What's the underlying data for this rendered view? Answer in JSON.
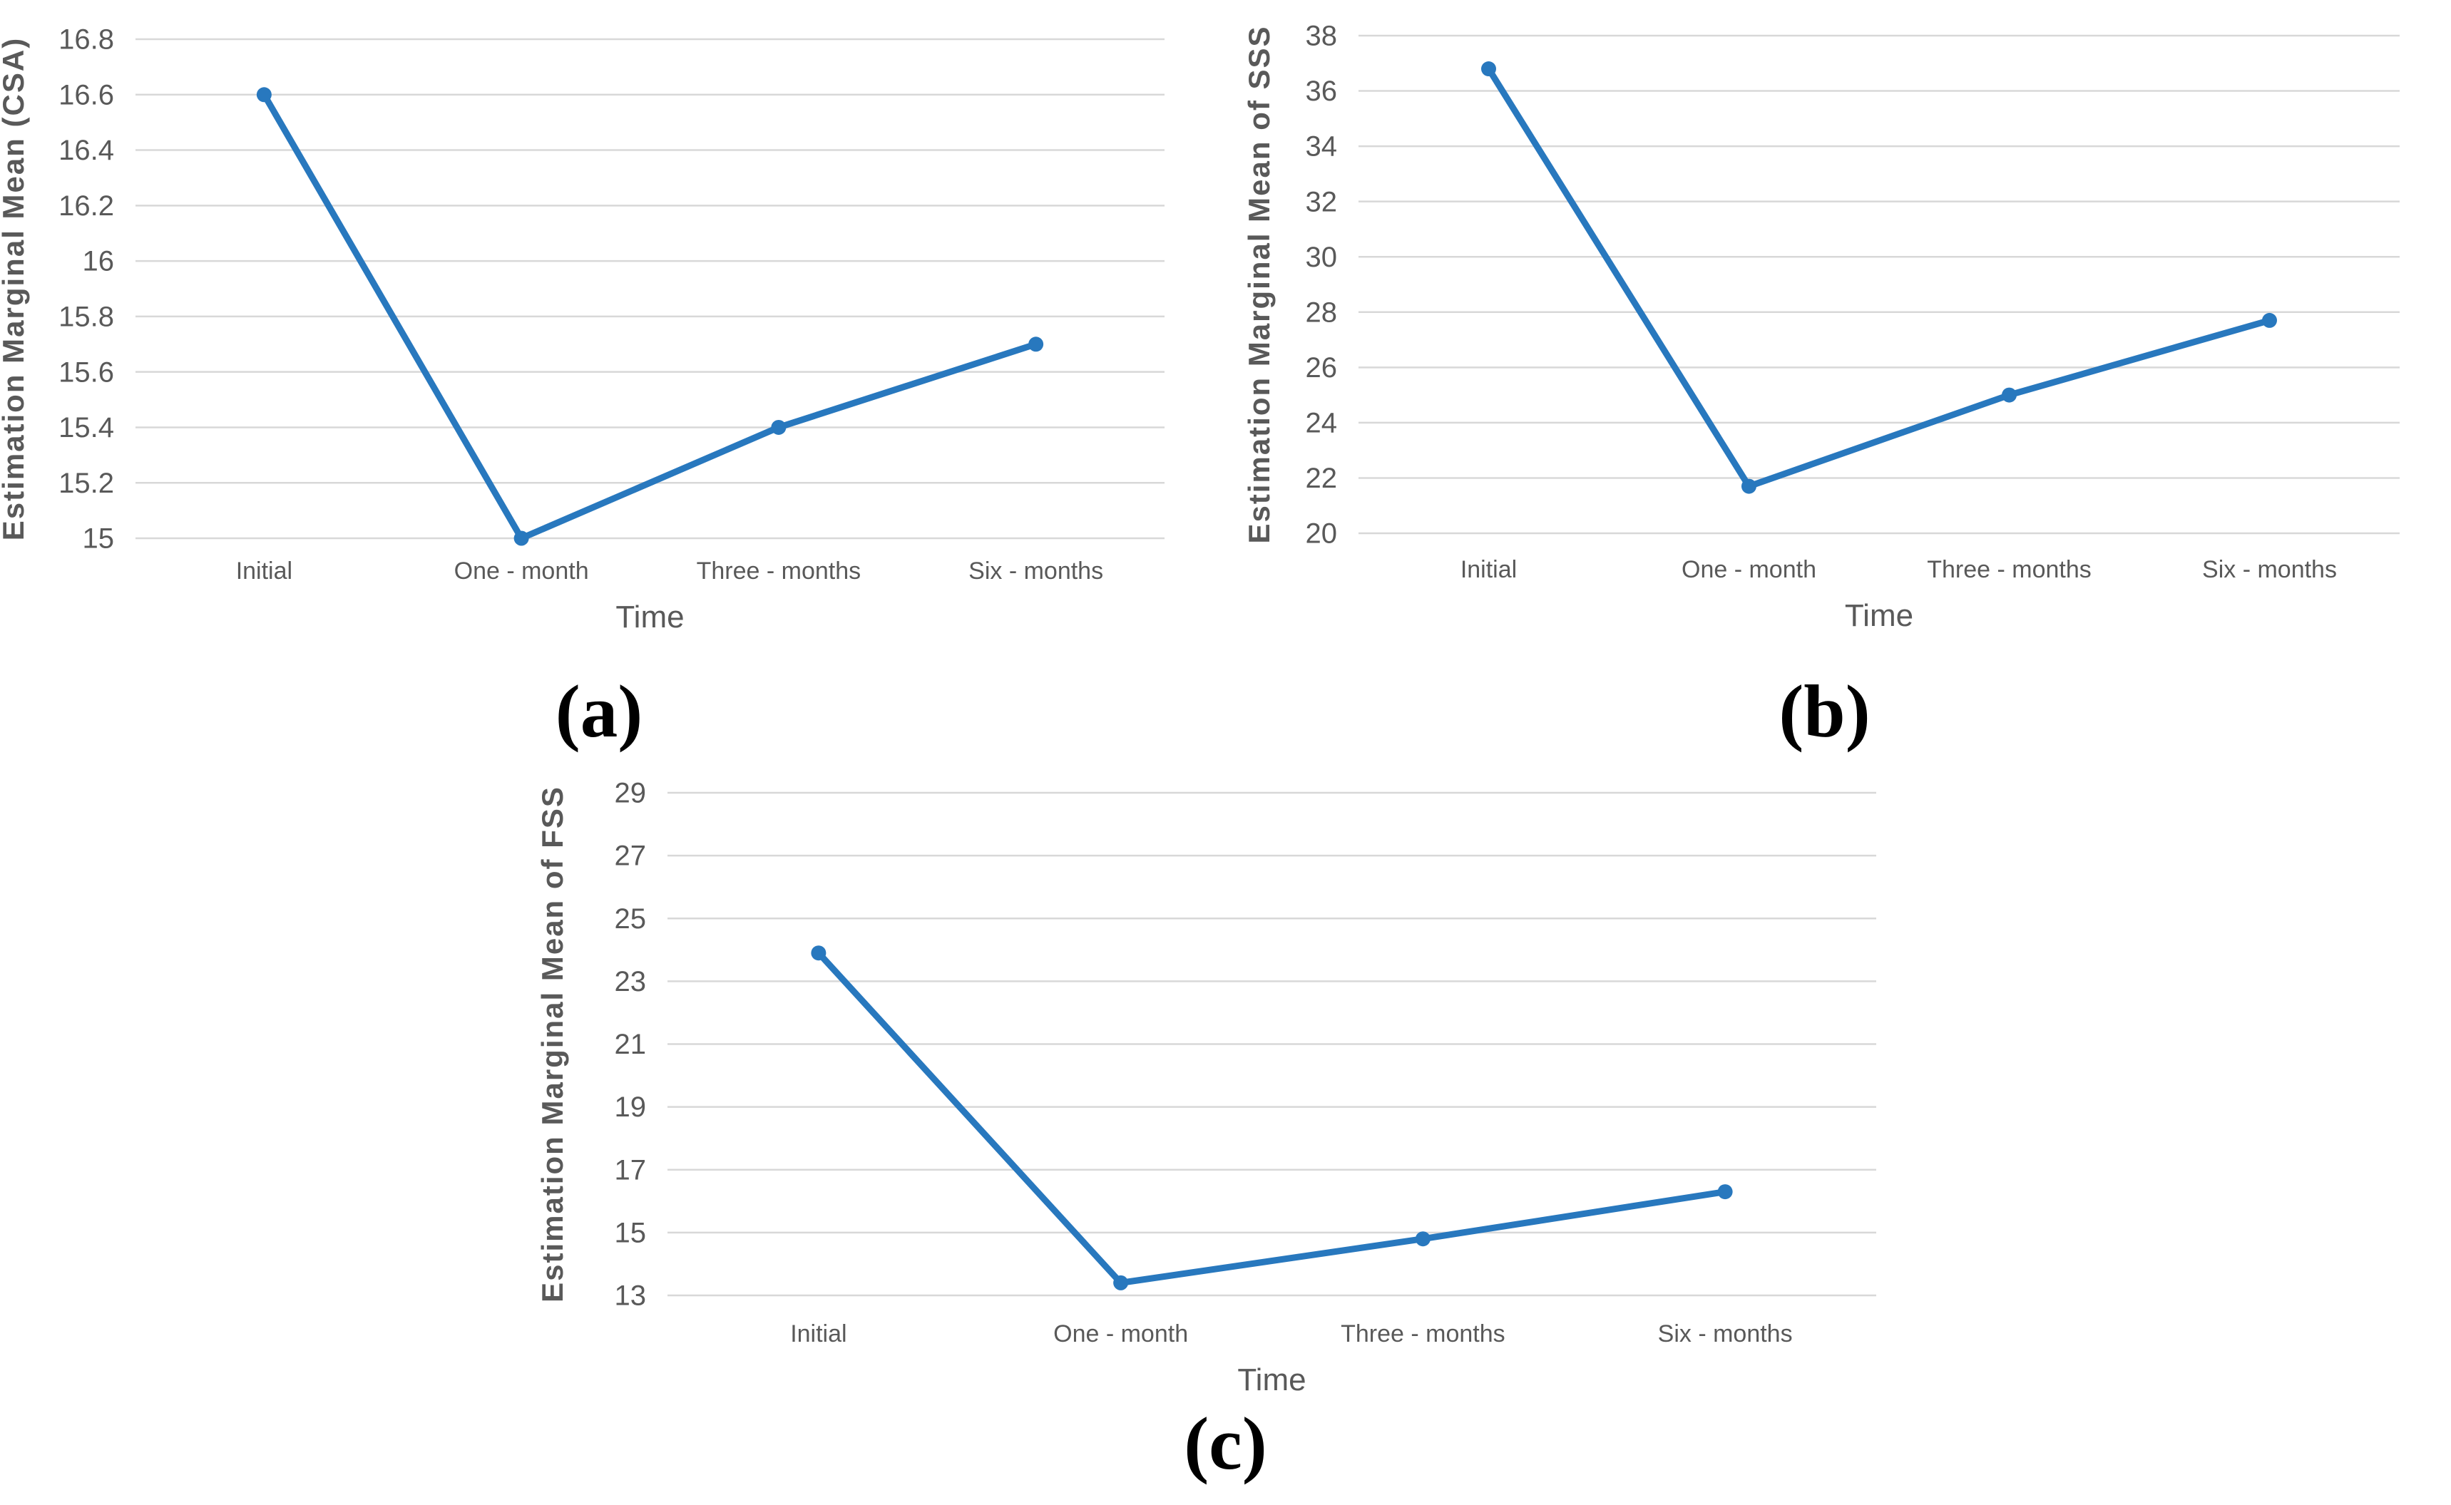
{
  "figure": {
    "background": "#ffffff"
  },
  "chart_data": [
    {
      "type": "line",
      "caption": "(a)",
      "ylabel": "Estimation Marginal Mean (CSA)",
      "xlabel": "Time",
      "categories": [
        "Initial",
        "One - month",
        "Three - months",
        "Six - months"
      ],
      "values": [
        16.6,
        15.0,
        15.4,
        15.7
      ],
      "ylim": [
        15,
        16.8
      ],
      "ystep": 0.2,
      "grid": true,
      "legend": "none",
      "colors": {
        "line": "#2878BE",
        "grid": "#D8D8D8",
        "text": "#595959"
      }
    },
    {
      "type": "line",
      "caption": "(b)",
      "ylabel": "Estimation Marginal Mean of SSS",
      "xlabel": "Time",
      "categories": [
        "Initial",
        "One - month",
        "Three - months",
        "Six - months"
      ],
      "values": [
        36.8,
        21.7,
        25.0,
        27.7
      ],
      "ylim": [
        20,
        38
      ],
      "ystep": 2,
      "grid": true,
      "legend": "none",
      "colors": {
        "line": "#2878BE",
        "grid": "#D8D8D8",
        "text": "#595959"
      }
    },
    {
      "type": "line",
      "caption": "(c)",
      "ylabel": "Estimation Marginal Mean of FSS",
      "xlabel": "Time",
      "categories": [
        "Initial",
        "One - month",
        "Three - months",
        "Six - months"
      ],
      "values": [
        23.9,
        13.4,
        14.8,
        16.3
      ],
      "ylim": [
        13,
        29
      ],
      "ystep": 2,
      "grid": true,
      "legend": "none",
      "colors": {
        "line": "#2878BE",
        "grid": "#D8D8D8",
        "text": "#595959"
      }
    }
  ]
}
